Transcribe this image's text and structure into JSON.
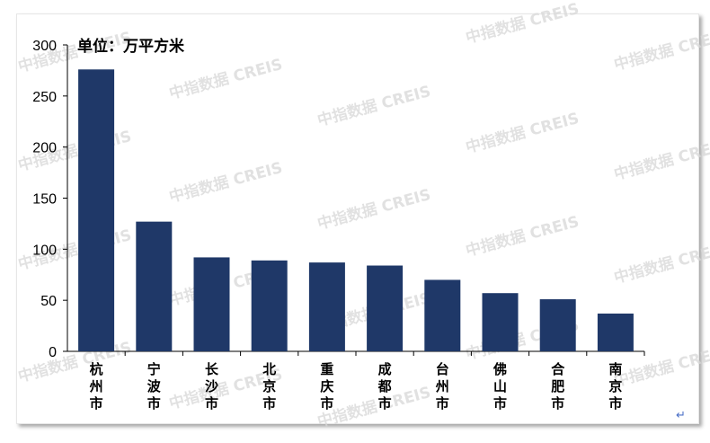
{
  "chart_data": {
    "type": "bar",
    "unit_label": "单位：万平方米",
    "categories": [
      "杭州市",
      "宁波市",
      "长沙市",
      "北京市",
      "重庆市",
      "成都市",
      "台州市",
      "佛山市",
      "合肥市",
      "南京市"
    ],
    "values": [
      276,
      127,
      92,
      89,
      87,
      84,
      70,
      57,
      51,
      37
    ],
    "ylim": [
      0,
      300
    ],
    "yticks": [
      0,
      50,
      100,
      150,
      200,
      250,
      300
    ],
    "bar_color": "#1f3868",
    "grid": false,
    "legend": "none"
  },
  "watermark": {
    "text": "中指数据 CREIS"
  },
  "cursor_glyph": "↵"
}
